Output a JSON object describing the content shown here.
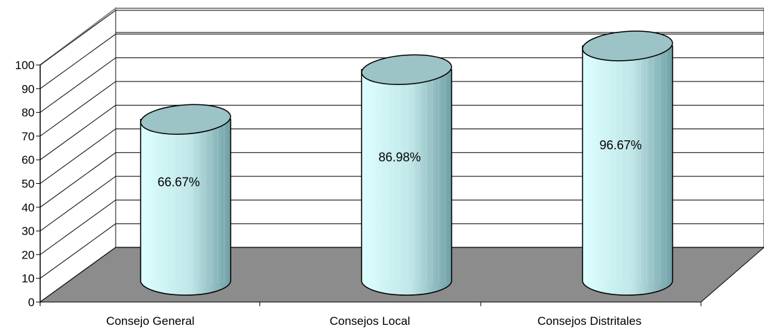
{
  "chart_data": {
    "type": "bar",
    "style": "3d-cylinder",
    "categories": [
      "Consejo General",
      "Consejos Local",
      "Consejos Distritales"
    ],
    "values": [
      66.67,
      86.98,
      96.67
    ],
    "data_labels": [
      "66.67%",
      "86.98%",
      "96.67%"
    ],
    "y_ticks": [
      "0",
      "10",
      "20",
      "30",
      "40",
      "50",
      "60",
      "70",
      "80",
      "90",
      "100"
    ],
    "ylim": [
      0,
      100
    ],
    "grid": true,
    "legend": "none"
  },
  "colors": {
    "cylinder_light": "#ddffff",
    "cylinder_dark": "#6fa0a5",
    "cylinder_top": "#9cc3c5",
    "floor": "#8c8c8c",
    "grid": "#000000",
    "frame": "#8a8a8a"
  }
}
